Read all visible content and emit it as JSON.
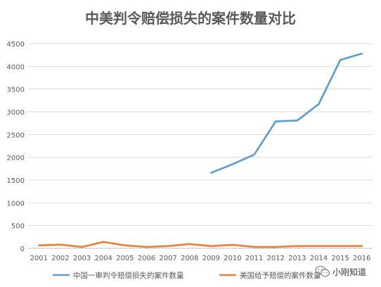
{
  "chart_data": {
    "type": "line",
    "title": "中美判令赔偿损失的案件数量对比",
    "categories": [
      "2001",
      "2002",
      "2003",
      "2004",
      "2005",
      "2006",
      "2007",
      "2008",
      "2009",
      "2010",
      "2011",
      "2012",
      "2013",
      "2014",
      "2015",
      "2016"
    ],
    "ylim": [
      0,
      4500
    ],
    "yticks": [
      0,
      500,
      1000,
      1500,
      2000,
      2500,
      3000,
      3500,
      4000,
      4500
    ],
    "grid": true,
    "legend_position": "bottom",
    "series": [
      {
        "name": "中国一审判令赔偿损失的案件数量",
        "color": "#5B9BD5",
        "values": [
          null,
          null,
          null,
          null,
          null,
          null,
          null,
          null,
          1660,
          1850,
          2060,
          2790,
          2810,
          3170,
          4140,
          4280
        ]
      },
      {
        "name": "美国给予赔偿的案件数量",
        "color": "#ED7D31",
        "values": [
          65,
          80,
          30,
          140,
          65,
          30,
          50,
          95,
          50,
          75,
          30,
          30,
          50,
          50,
          50,
          50
        ]
      }
    ]
  },
  "watermark": {
    "text": "小刚知道",
    "icon": "wechat-icon"
  }
}
